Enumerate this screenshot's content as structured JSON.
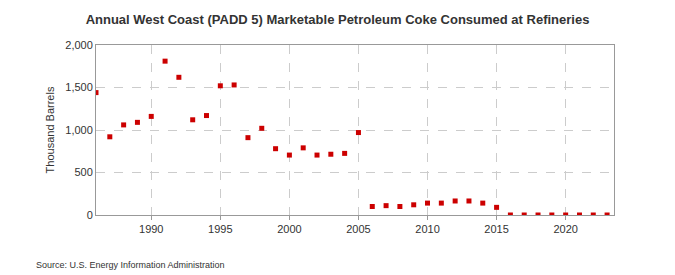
{
  "chart_data": {
    "type": "scatter",
    "title": "Annual West Coast (PADD 5) Marketable Petroleum Coke Consumed at Refineries",
    "y_label": "Thousand Barrels",
    "source": "Source: U.S. Energy Information Administration",
    "x": [
      1986,
      1987,
      1988,
      1989,
      1990,
      1991,
      1992,
      1993,
      1994,
      1995,
      1996,
      1997,
      1998,
      1999,
      2000,
      2001,
      2002,
      2003,
      2004,
      2005,
      2006,
      2007,
      2008,
      2009,
      2010,
      2011,
      2012,
      2013,
      2014,
      2015,
      2016,
      2017,
      2018,
      2019,
      2020,
      2021,
      2022,
      2023
    ],
    "values": [
      1440,
      920,
      1060,
      1090,
      1160,
      1810,
      1620,
      1120,
      1170,
      1520,
      1530,
      910,
      1020,
      780,
      705,
      790,
      705,
      715,
      725,
      970,
      100,
      110,
      100,
      120,
      140,
      140,
      165,
      165,
      140,
      90,
      0,
      0,
      0,
      0,
      0,
      0,
      0,
      0
    ],
    "color": "#cc0000",
    "marker": "square",
    "xlim": [
      1986,
      2023.5
    ],
    "xticks": [
      1990,
      1995,
      2000,
      2005,
      2010,
      2015,
      2020
    ],
    "ylim": [
      0,
      2000
    ],
    "yticks": [
      0,
      500,
      {
        "value": 1000,
        "label": "1,000"
      },
      {
        "value": 1500,
        "label": "1,500"
      },
      {
        "value": 2000,
        "label": "2,000"
      }
    ],
    "grid": true
  }
}
